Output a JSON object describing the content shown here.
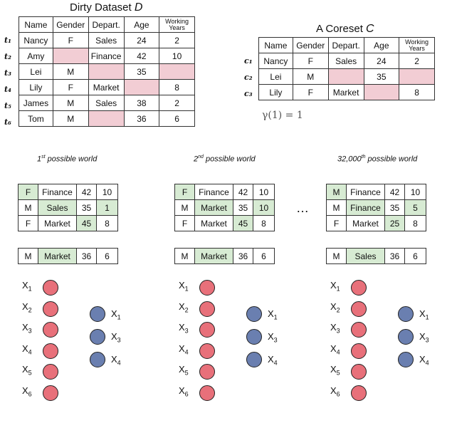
{
  "dirty_title": "Dirty Dataset",
  "dirty_title_symbol": "D",
  "coreset_title": "A Coreset",
  "coreset_title_symbol": "C",
  "dirty_header": [
    "Name",
    "Gender",
    "Depart.",
    "Age",
    "Working Years"
  ],
  "dirty_rows": [
    {
      "label": "t₁",
      "cells": [
        "Nancy",
        "F",
        "Sales",
        "24",
        "2"
      ],
      "missing": []
    },
    {
      "label": "t₂",
      "cells": [
        "Amy",
        "",
        "Finance",
        "42",
        "10"
      ],
      "missing": [
        1
      ]
    },
    {
      "label": "t₃",
      "cells": [
        "Lei",
        "M",
        "",
        "35",
        ""
      ],
      "missing": [
        2,
        4
      ]
    },
    {
      "label": "t₄",
      "cells": [
        "Lily",
        "F",
        "Market",
        "",
        "8"
      ],
      "missing": [
        3
      ]
    },
    {
      "label": "t₅",
      "cells": [
        "James",
        "M",
        "Sales",
        "38",
        "2"
      ],
      "missing": []
    },
    {
      "label": "t₆",
      "cells": [
        "Tom",
        "M",
        "",
        "36",
        "6"
      ],
      "missing": [
        2
      ]
    }
  ],
  "coreset_header": [
    "Name",
    "Gender",
    "Depart.",
    "Age",
    "Working Years"
  ],
  "coreset_rows": [
    {
      "label": "c₁",
      "cells": [
        "Nancy",
        "F",
        "Sales",
        "24",
        "2"
      ],
      "missing": []
    },
    {
      "label": "c₂",
      "cells": [
        "Lei",
        "M",
        "",
        "35",
        ""
      ],
      "missing": [
        2,
        4
      ]
    },
    {
      "label": "c₃",
      "cells": [
        "Lily",
        "F",
        "Market",
        "",
        "8"
      ],
      "missing": [
        3
      ]
    }
  ],
  "gamma_text": "γ(1) = 1",
  "worlds": [
    {
      "title_num": "1",
      "title_sup": "st",
      "title_rest": " possible world",
      "rows": [
        {
          "cells": [
            "F",
            "Finance",
            "42",
            "10"
          ],
          "imputed": [
            0
          ]
        },
        {
          "cells": [
            "M",
            "Sales",
            "35",
            "1"
          ],
          "imputed": [
            1,
            3
          ]
        },
        {
          "cells": [
            "F",
            "Market",
            "45",
            "8"
          ],
          "imputed": [
            2
          ]
        }
      ],
      "test_row": {
        "cells": [
          "M",
          "Market",
          "36",
          "6"
        ],
        "imputed": [
          1
        ]
      }
    },
    {
      "title_num": "2",
      "title_sup": "nd",
      "title_rest": " possible world",
      "rows": [
        {
          "cells": [
            "F",
            "Finance",
            "42",
            "10"
          ],
          "imputed": [
            0
          ]
        },
        {
          "cells": [
            "M",
            "Market",
            "35",
            "10"
          ],
          "imputed": [
            1,
            3
          ]
        },
        {
          "cells": [
            "F",
            "Market",
            "45",
            "8"
          ],
          "imputed": [
            2
          ]
        }
      ],
      "test_row": {
        "cells": [
          "M",
          "Market",
          "36",
          "6"
        ],
        "imputed": [
          1
        ]
      }
    },
    {
      "title_num": "32,000",
      "title_sup": "th",
      "title_rest": " possible world",
      "rows": [
        {
          "cells": [
            "M",
            "Finance",
            "42",
            "10"
          ],
          "imputed": [
            0
          ]
        },
        {
          "cells": [
            "M",
            "Finance",
            "35",
            "5"
          ],
          "imputed": [
            1,
            3
          ]
        },
        {
          "cells": [
            "F",
            "Market",
            "25",
            "8"
          ],
          "imputed": [
            2
          ]
        }
      ],
      "test_row": {
        "cells": [
          "M",
          "Sales",
          "36",
          "6"
        ],
        "imputed": [
          1
        ]
      }
    }
  ],
  "ellipsis": "…",
  "input_nodes": [
    "1",
    "2",
    "3",
    "4",
    "5",
    "6"
  ],
  "output_nodes": [
    "1",
    "3",
    "4"
  ],
  "node_letter": "X",
  "colors": {
    "missing_cell": "#f2cdd4",
    "imputed_cell": "#d7ebd3",
    "input_node": "#e8707a",
    "output_node": "#6a7fb0"
  }
}
